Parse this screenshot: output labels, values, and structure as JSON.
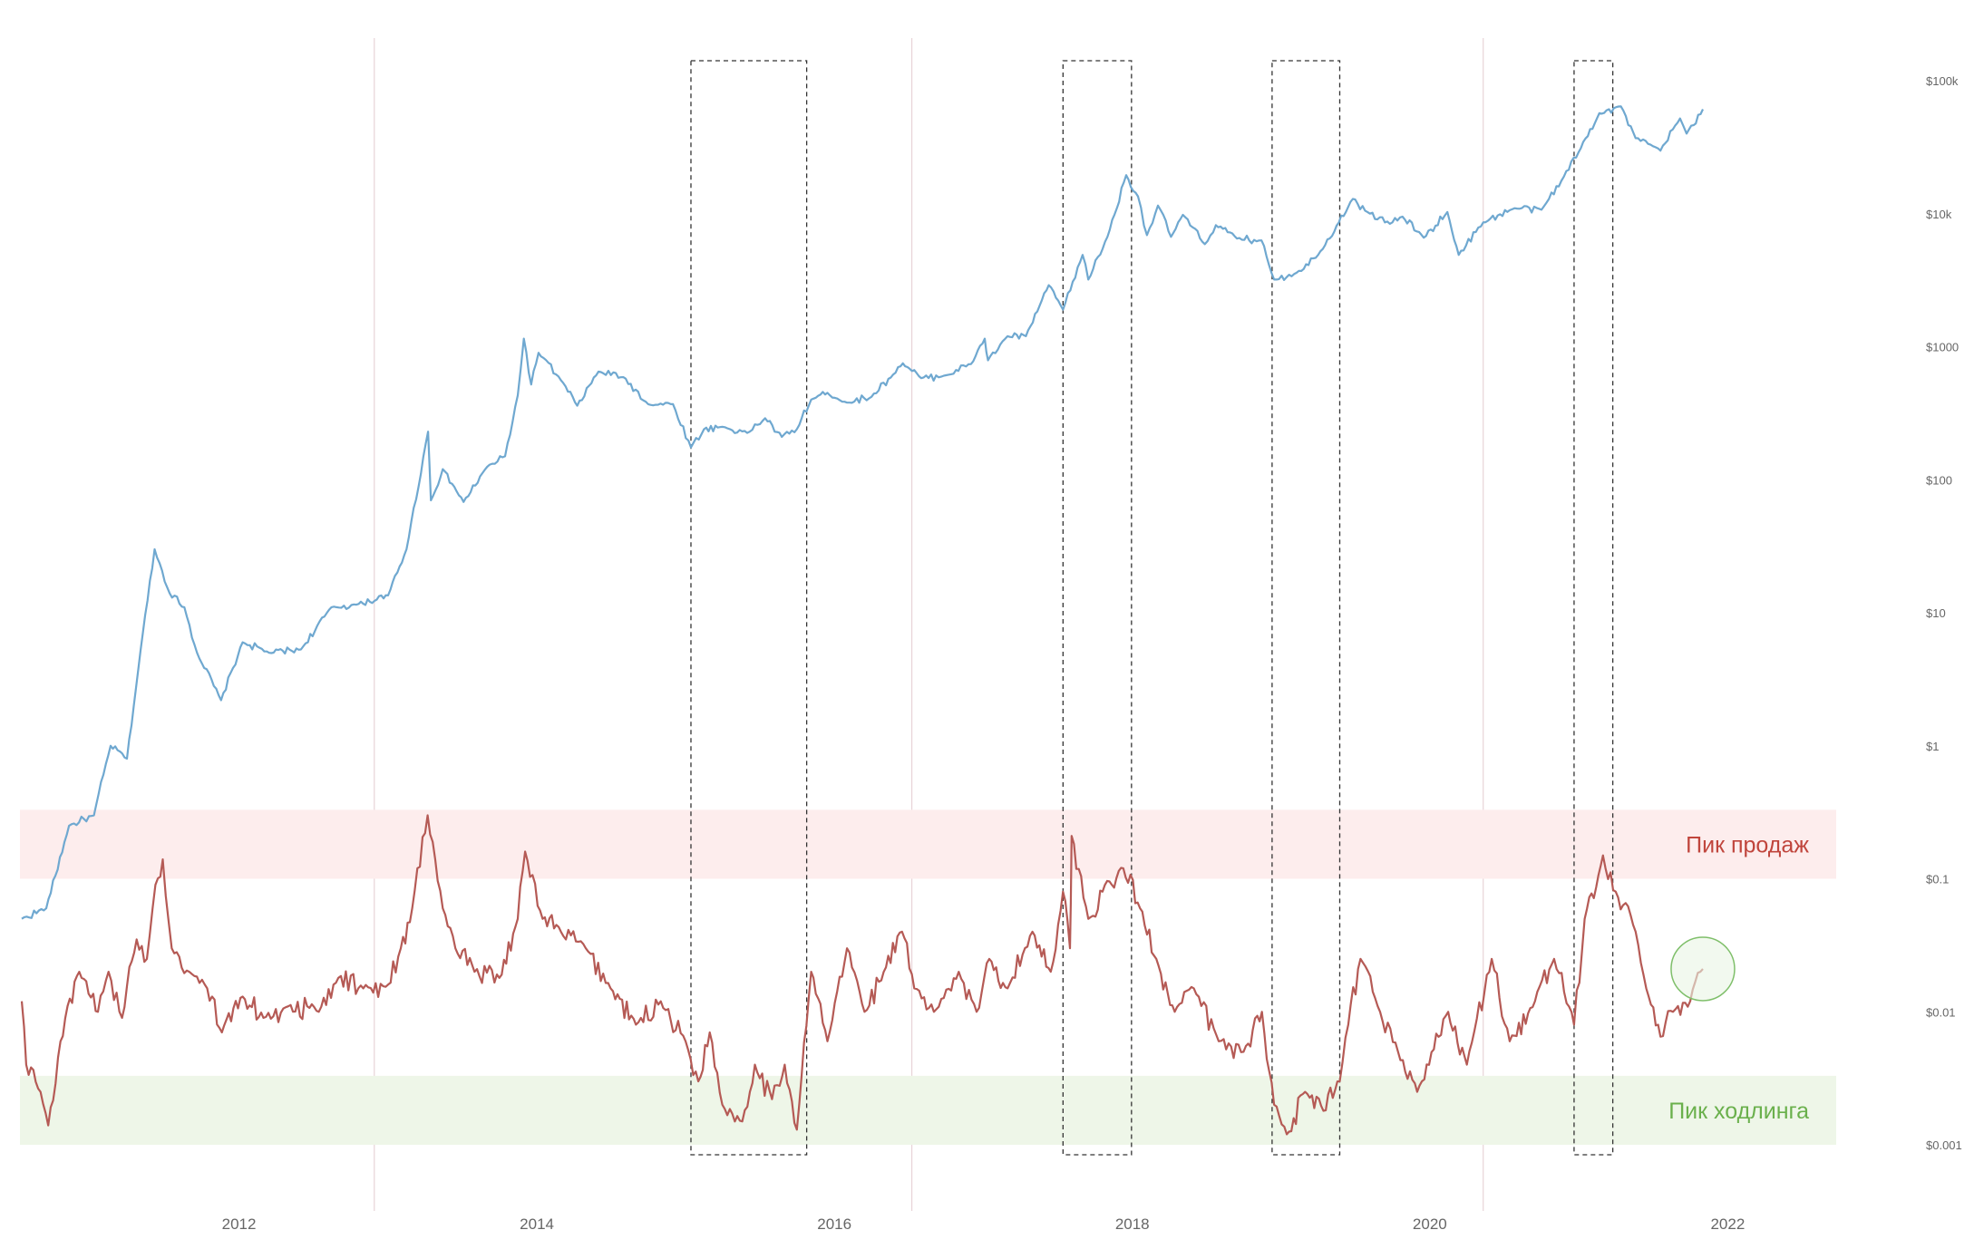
{
  "colors": {
    "price_line": "#6fa8d0",
    "metric_line": "#b55a55",
    "sell_zone_fill": "#fdeded",
    "sell_zone_text": "#c0453c",
    "hold_zone_fill": "#eef6e8",
    "hold_zone_text": "#6ab04c",
    "halving_line": "#e8d4d8",
    "axis_text": "#666666",
    "box_stroke": "#333333",
    "marker_stroke": "#7fbf6a",
    "marker_fill": "#eaf5e4"
  },
  "chart_data": {
    "type": "line",
    "x_axis": {
      "type": "date",
      "range": [
        "2010-07-17",
        "2022-11-01"
      ],
      "tick_labels": [
        "2012",
        "2014",
        "2016",
        "2018",
        "2020",
        "2022"
      ]
    },
    "y_axis": {
      "scale": "log",
      "position": "right",
      "range": [
        0.001,
        100000
      ],
      "tick_values": [
        0.001,
        0.01,
        0.1,
        1,
        10,
        100,
        1000,
        10000,
        100000
      ],
      "tick_labels": [
        "$0.001",
        "$0.01",
        "$0.1",
        "$1",
        "$10",
        "$100",
        "$1000",
        "$10k",
        "$100k"
      ]
    },
    "grid": false,
    "legend": "none",
    "zones": [
      {
        "label": "Пик продаж",
        "y_range": [
          0.1,
          0.33
        ],
        "color": "sell"
      },
      {
        "label": "Пик ходлинга",
        "y_range": [
          0.001,
          0.0033
        ],
        "color": "hold"
      }
    ],
    "halvings": [
      "2012-11-28",
      "2016-07-09",
      "2020-05-11"
    ],
    "highlight_periods": [
      {
        "start": "2015-01-14",
        "end": "2015-10-25"
      },
      {
        "start": "2017-07-15",
        "end": "2017-12-30"
      },
      {
        "start": "2018-12-10",
        "end": "2019-05-25"
      },
      {
        "start": "2020-12-20",
        "end": "2021-03-25"
      }
    ],
    "current_marker": {
      "date": "2021-11-01",
      "value": 0.021
    },
    "series": [
      {
        "id": "price",
        "points": [
          [
            "2010-07-17",
            0.05
          ],
          [
            "2010-09-15",
            0.06
          ],
          [
            "2010-11-10",
            0.25
          ],
          [
            "2011-01-10",
            0.3
          ],
          [
            "2011-02-20",
            1.0
          ],
          [
            "2011-04-01",
            0.8
          ],
          [
            "2011-05-10",
            7
          ],
          [
            "2011-06-08",
            30
          ],
          [
            "2011-07-15",
            14
          ],
          [
            "2011-08-20",
            11
          ],
          [
            "2011-09-20",
            5
          ],
          [
            "2011-11-18",
            2.2
          ],
          [
            "2012-01-10",
            6
          ],
          [
            "2012-03-15",
            5
          ],
          [
            "2012-06-01",
            5.3
          ],
          [
            "2012-08-15",
            11
          ],
          [
            "2012-10-15",
            11.5
          ],
          [
            "2013-01-01",
            13.5
          ],
          [
            "2013-02-15",
            30
          ],
          [
            "2013-04-09",
            230
          ],
          [
            "2013-04-16",
            70
          ],
          [
            "2013-05-15",
            120
          ],
          [
            "2013-07-05",
            68
          ],
          [
            "2013-09-01",
            125
          ],
          [
            "2013-10-15",
            150
          ],
          [
            "2013-11-15",
            430
          ],
          [
            "2013-11-30",
            1150
          ],
          [
            "2013-12-18",
            520
          ],
          [
            "2014-01-05",
            900
          ],
          [
            "2014-03-01",
            560
          ],
          [
            "2014-04-10",
            360
          ],
          [
            "2014-06-01",
            650
          ],
          [
            "2014-08-01",
            590
          ],
          [
            "2014-10-01",
            370
          ],
          [
            "2014-12-01",
            370
          ],
          [
            "2015-01-14",
            175
          ],
          [
            "2015-02-15",
            240
          ],
          [
            "2015-04-01",
            250
          ],
          [
            "2015-06-01",
            225
          ],
          [
            "2015-07-15",
            290
          ],
          [
            "2015-08-25",
            210
          ],
          [
            "2015-10-01",
            240
          ],
          [
            "2015-11-05",
            400
          ],
          [
            "2015-12-15",
            450
          ],
          [
            "2016-02-01",
            380
          ],
          [
            "2016-04-01",
            420
          ],
          [
            "2016-06-17",
            750
          ],
          [
            "2016-08-01",
            580
          ],
          [
            "2016-10-01",
            610
          ],
          [
            "2016-12-01",
            740
          ],
          [
            "2017-01-04",
            1150
          ],
          [
            "2017-01-12",
            790
          ],
          [
            "2017-03-01",
            1200
          ],
          [
            "2017-04-15",
            1200
          ],
          [
            "2017-06-10",
            2900
          ],
          [
            "2017-07-15",
            1900
          ],
          [
            "2017-09-01",
            4900
          ],
          [
            "2017-09-15",
            3200
          ],
          [
            "2017-11-01",
            6700
          ],
          [
            "2017-12-17",
            19500
          ],
          [
            "2018-01-15",
            13500
          ],
          [
            "2018-02-06",
            6900
          ],
          [
            "2018-03-05",
            11500
          ],
          [
            "2018-04-06",
            6700
          ],
          [
            "2018-05-05",
            9800
          ],
          [
            "2018-06-28",
            5900
          ],
          [
            "2018-07-25",
            8200
          ],
          [
            "2018-09-15",
            6500
          ],
          [
            "2018-11-14",
            6300
          ],
          [
            "2018-12-15",
            3200
          ],
          [
            "2019-02-08",
            3600
          ],
          [
            "2019-04-02",
            4900
          ],
          [
            "2019-06-26",
            12900
          ],
          [
            "2019-08-01",
            10300
          ],
          [
            "2019-09-25",
            8400
          ],
          [
            "2019-10-26",
            9500
          ],
          [
            "2019-12-17",
            6600
          ],
          [
            "2020-02-13",
            10300
          ],
          [
            "2020-03-12",
            4900
          ],
          [
            "2020-05-11",
            8600
          ],
          [
            "2020-07-27",
            11000
          ],
          [
            "2020-10-01",
            10700
          ],
          [
            "2020-11-25",
            19000
          ],
          [
            "2020-12-31",
            29000
          ],
          [
            "2021-02-20",
            57000
          ],
          [
            "2021-04-14",
            64000
          ],
          [
            "2021-05-20",
            37000
          ],
          [
            "2021-07-20",
            29800
          ],
          [
            "2021-09-06",
            52000
          ],
          [
            "2021-09-22",
            40000
          ],
          [
            "2021-11-01",
            61000
          ]
        ]
      },
      {
        "id": "metric",
        "points": [
          [
            "2010-07-17",
            0.012
          ],
          [
            "2010-07-28",
            0.004
          ],
          [
            "2010-09-01",
            0.0025
          ],
          [
            "2010-09-20",
            0.0014
          ],
          [
            "2010-10-20",
            0.006
          ],
          [
            "2010-12-05",
            0.02
          ],
          [
            "2011-01-20",
            0.01
          ],
          [
            "2011-02-15",
            0.02
          ],
          [
            "2011-03-20",
            0.009
          ],
          [
            "2011-04-25",
            0.035
          ],
          [
            "2011-05-20",
            0.025
          ],
          [
            "2011-06-10",
            0.09
          ],
          [
            "2011-06-28",
            0.14
          ],
          [
            "2011-07-20",
            0.03
          ],
          [
            "2011-09-01",
            0.02
          ],
          [
            "2011-10-15",
            0.015
          ],
          [
            "2011-11-20",
            0.007
          ],
          [
            "2012-01-10",
            0.013
          ],
          [
            "2012-03-01",
            0.009
          ],
          [
            "2012-05-01",
            0.011
          ],
          [
            "2012-07-15",
            0.01
          ],
          [
            "2012-09-01",
            0.018
          ],
          [
            "2012-11-01",
            0.015
          ],
          [
            "2013-01-01",
            0.016
          ],
          [
            "2013-02-01",
            0.03
          ],
          [
            "2013-03-01",
            0.06
          ],
          [
            "2013-04-08",
            0.3
          ],
          [
            "2013-05-15",
            0.06
          ],
          [
            "2013-06-15",
            0.03
          ],
          [
            "2013-08-01",
            0.02
          ],
          [
            "2013-10-01",
            0.018
          ],
          [
            "2013-11-15",
            0.05
          ],
          [
            "2013-12-03",
            0.16
          ],
          [
            "2014-01-15",
            0.05
          ],
          [
            "2014-03-01",
            0.04
          ],
          [
            "2014-05-01",
            0.03
          ],
          [
            "2014-07-01",
            0.015
          ],
          [
            "2014-09-01",
            0.008
          ],
          [
            "2014-11-01",
            0.012
          ],
          [
            "2015-01-01",
            0.006
          ],
          [
            "2015-02-01",
            0.003
          ],
          [
            "2015-03-01",
            0.007
          ],
          [
            "2015-04-01",
            0.002
          ],
          [
            "2015-05-20",
            0.0015
          ],
          [
            "2015-06-20",
            0.004
          ],
          [
            "2015-08-01",
            0.0022
          ],
          [
            "2015-09-01",
            0.004
          ],
          [
            "2015-10-01",
            0.0013
          ],
          [
            "2015-11-05",
            0.02
          ],
          [
            "2015-12-15",
            0.006
          ],
          [
            "2016-02-01",
            0.03
          ],
          [
            "2016-03-15",
            0.01
          ],
          [
            "2016-05-01",
            0.02
          ],
          [
            "2016-06-15",
            0.04
          ],
          [
            "2016-07-15",
            0.015
          ],
          [
            "2016-09-01",
            0.01
          ],
          [
            "2016-11-01",
            0.02
          ],
          [
            "2016-12-15",
            0.01
          ],
          [
            "2017-01-15",
            0.025
          ],
          [
            "2017-03-01",
            0.015
          ],
          [
            "2017-05-01",
            0.04
          ],
          [
            "2017-06-15",
            0.02
          ],
          [
            "2017-07-15",
            0.08
          ],
          [
            "2017-08-01",
            0.03
          ],
          [
            "2017-08-05",
            0.21
          ],
          [
            "2017-09-15",
            0.05
          ],
          [
            "2017-10-20",
            0.08
          ],
          [
            "2017-12-10",
            0.12
          ],
          [
            "2018-01-20",
            0.06
          ],
          [
            "2018-03-01",
            0.025
          ],
          [
            "2018-04-15",
            0.01
          ],
          [
            "2018-06-01",
            0.015
          ],
          [
            "2018-08-01",
            0.006
          ],
          [
            "2018-10-01",
            0.005
          ],
          [
            "2018-11-15",
            0.01
          ],
          [
            "2018-12-15",
            0.002
          ],
          [
            "2019-01-15",
            0.0012
          ],
          [
            "2019-03-01",
            0.0025
          ],
          [
            "2019-04-15",
            0.0018
          ],
          [
            "2019-05-25",
            0.003
          ],
          [
            "2019-06-15",
            0.008
          ],
          [
            "2019-07-15",
            0.025
          ],
          [
            "2019-09-01",
            0.01
          ],
          [
            "2019-10-15",
            0.005
          ],
          [
            "2019-12-01",
            0.0025
          ],
          [
            "2020-02-15",
            0.01
          ],
          [
            "2020-04-01",
            0.004
          ],
          [
            "2020-06-01",
            0.025
          ],
          [
            "2020-07-15",
            0.006
          ],
          [
            "2020-09-15",
            0.012
          ],
          [
            "2020-11-01",
            0.025
          ],
          [
            "2020-12-20",
            0.008
          ],
          [
            "2021-01-15",
            0.05
          ],
          [
            "2021-03-01",
            0.15
          ],
          [
            "2021-04-01",
            0.08
          ],
          [
            "2021-05-20",
            0.04
          ],
          [
            "2021-06-15",
            0.015
          ],
          [
            "2021-07-20",
            0.0065
          ],
          [
            "2021-08-20",
            0.01
          ],
          [
            "2021-10-01",
            0.012
          ],
          [
            "2021-11-01",
            0.021
          ]
        ]
      }
    ]
  }
}
